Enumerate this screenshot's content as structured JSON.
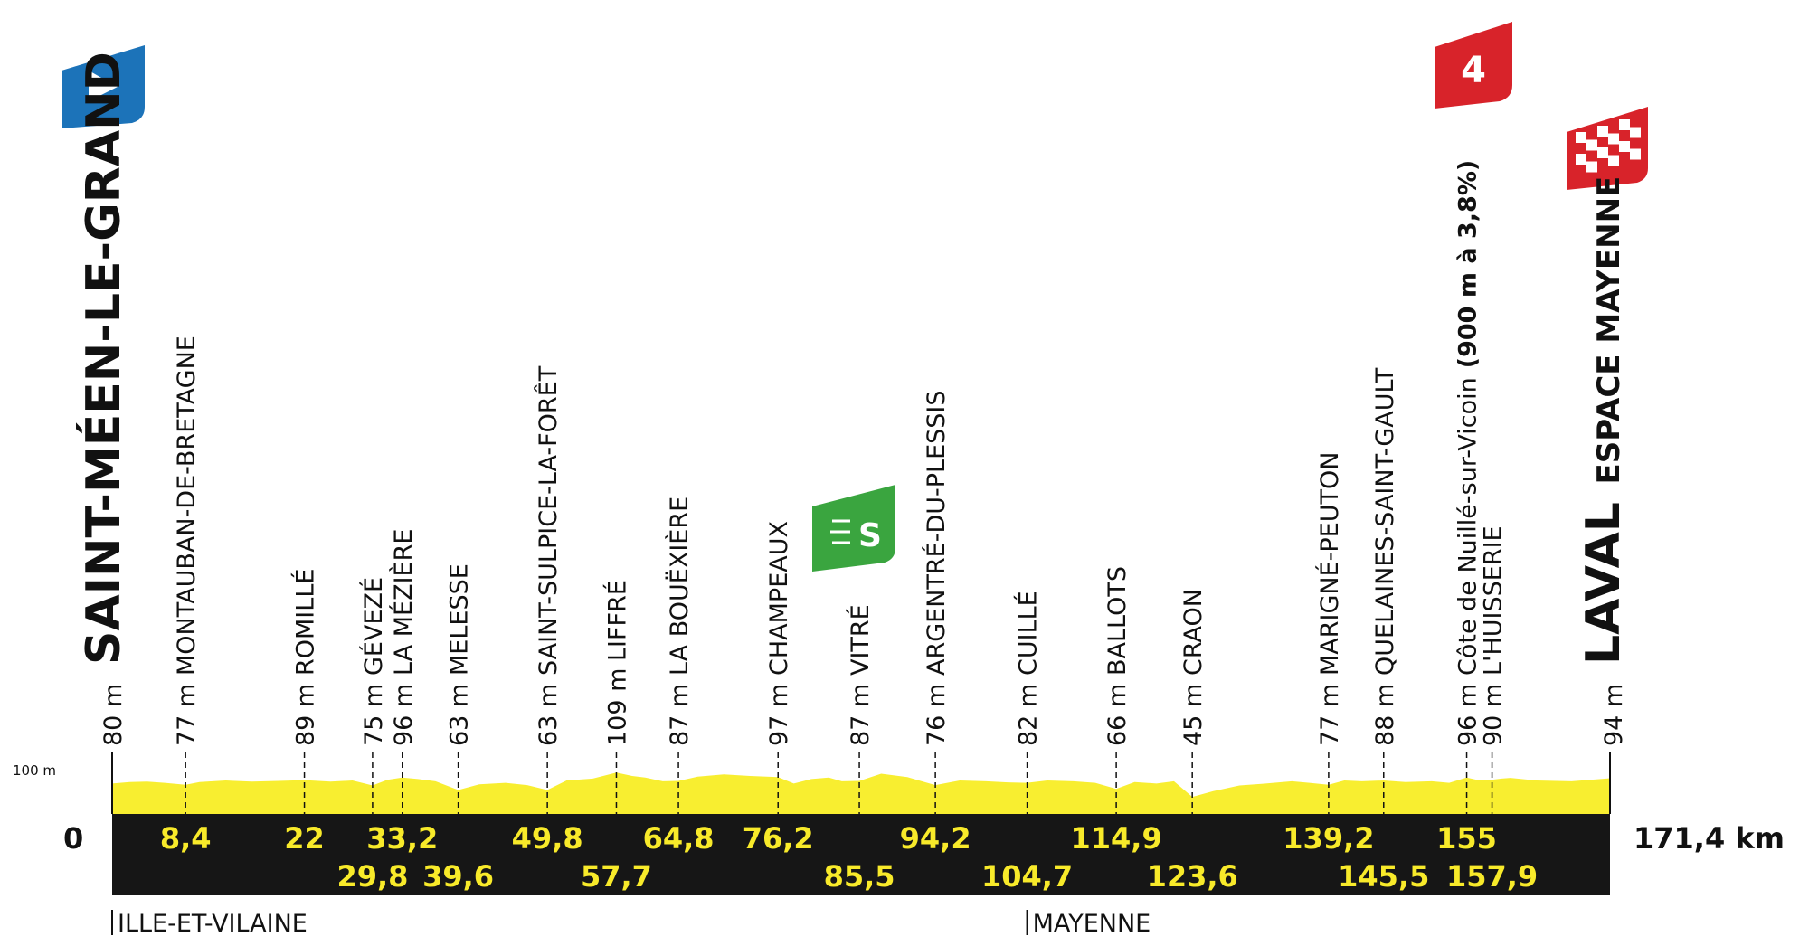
{
  "colors": {
    "profile_fill": "#f8ee30",
    "base_band": "#161616",
    "km_text": "#f8ea2a",
    "start_flag": "#1c73b9",
    "climb_flag": "#d8232a",
    "sprint_flag": "#3aa53f",
    "finish_flag": "#d8232a"
  },
  "icons": {
    "start": "start-play-flag-icon",
    "climb": "climb-category-4-icon",
    "sprint": "intermediate-sprint-icon",
    "finish": "checkered-finish-flag-icon"
  },
  "climb_flag_label": "4",
  "sprint_flag_label": "S",
  "start_label": "0",
  "total_distance": "171,4 km",
  "alt_scale_label": "100 m",
  "start_town": {
    "elev": "80 m",
    "name": "SAINT-MÉEN-LE-GRAND"
  },
  "finish_town": {
    "elev": "94 m",
    "name": "LAVAL",
    "venue": "ESPACE MAYENNE"
  },
  "regions": [
    {
      "km": 0,
      "name": "ILLE-ET-VILAINE"
    },
    {
      "km": 104.7,
      "name": "MAYENNE"
    }
  ],
  "chart_data": {
    "type": "area",
    "xlim": [
      0,
      171.4
    ],
    "points": [
      {
        "km": 8.4,
        "km_label": "8,4",
        "row": 1,
        "elev": "77 m",
        "name": "MONTAUBAN-DE-BRETAGNE"
      },
      {
        "km": 22,
        "km_label": "22",
        "row": 1,
        "elev": "89 m",
        "name": "ROMILLÉ"
      },
      {
        "km": 29.8,
        "km_label": "29,8",
        "row": 2,
        "elev": "75 m",
        "name": "GÉVEZÉ"
      },
      {
        "km": 33.2,
        "km_label": "33,2",
        "row": 1,
        "elev": "96 m",
        "name": "LA MÉZIÈRE"
      },
      {
        "km": 39.6,
        "km_label": "39,6",
        "row": 2,
        "elev": "63 m",
        "name": "MELESSE"
      },
      {
        "km": 49.8,
        "km_label": "49,8",
        "row": 1,
        "elev": "63 m",
        "name": "SAINT-SULPICE-LA-FORÊT"
      },
      {
        "km": 57.7,
        "km_label": "57,7",
        "row": 2,
        "elev": "109 m",
        "name": "LIFFRÉ"
      },
      {
        "km": 64.8,
        "km_label": "64,8",
        "row": 1,
        "elev": "87 m",
        "name": "LA BOUËXIÈRE"
      },
      {
        "km": 76.2,
        "km_label": "76,2",
        "row": 1,
        "elev": "97 m",
        "name": "CHAMPEAUX"
      },
      {
        "km": 85.5,
        "km_label": "85,5",
        "row": 2,
        "elev": "87 m",
        "name": "VITRÉ"
      },
      {
        "km": 94.2,
        "km_label": "94,2",
        "row": 1,
        "elev": "76 m",
        "name": "ARGENTRÉ-DU-PLESSIS"
      },
      {
        "km": 104.7,
        "km_label": "104,7",
        "row": 2,
        "elev": "82 m",
        "name": "CUILLÉ"
      },
      {
        "km": 114.9,
        "km_label": "114,9",
        "row": 1,
        "elev": "66 m",
        "name": "BALLOTS"
      },
      {
        "km": 123.6,
        "km_label": "123,6",
        "row": 2,
        "elev": "45 m",
        "name": "CRAON"
      },
      {
        "km": 139.2,
        "km_label": "139,2",
        "row": 1,
        "elev": "77 m",
        "name": "MARIGNÉ-PEUTON"
      },
      {
        "km": 145.5,
        "km_label": "145,5",
        "row": 2,
        "elev": "88 m",
        "name": "QUELAINES-SAINT-GAULT"
      },
      {
        "km": 155,
        "km_label": "155",
        "row": 1,
        "elev": "96 m",
        "name": "Côte de Nuillé-sur-Vicoin",
        "extra": "(900 m à 3,8%)"
      },
      {
        "km": 157.9,
        "km_label": "157,9",
        "row": 2,
        "elev": "90 m",
        "name": "L'HUISSERIE"
      }
    ],
    "sprint_km": 85.5,
    "climb_km": 155,
    "profile_elev": [
      [
        0,
        80
      ],
      [
        2,
        84
      ],
      [
        4,
        85
      ],
      [
        6,
        82
      ],
      [
        8.4,
        77
      ],
      [
        10,
        84
      ],
      [
        13,
        88
      ],
      [
        16,
        85
      ],
      [
        19,
        87
      ],
      [
        22,
        89
      ],
      [
        25,
        85
      ],
      [
        27.5,
        88
      ],
      [
        29.8,
        75
      ],
      [
        31.5,
        90
      ],
      [
        33.2,
        96
      ],
      [
        35,
        92
      ],
      [
        37,
        86
      ],
      [
        39.6,
        63
      ],
      [
        42,
        78
      ],
      [
        45,
        82
      ],
      [
        47.5,
        76
      ],
      [
        49.8,
        63
      ],
      [
        52,
        88
      ],
      [
        55,
        93
      ],
      [
        57.7,
        109
      ],
      [
        59.5,
        100
      ],
      [
        61,
        96
      ],
      [
        63,
        86
      ],
      [
        64.8,
        87
      ],
      [
        67,
        98
      ],
      [
        70,
        104
      ],
      [
        73,
        100
      ],
      [
        76.2,
        97
      ],
      [
        78,
        80
      ],
      [
        80,
        92
      ],
      [
        82,
        96
      ],
      [
        83.5,
        86
      ],
      [
        85.5,
        87
      ],
      [
        88,
        106
      ],
      [
        91,
        97
      ],
      [
        94.2,
        76
      ],
      [
        97,
        88
      ],
      [
        100,
        86
      ],
      [
        102.5,
        83
      ],
      [
        104.7,
        82
      ],
      [
        107,
        88
      ],
      [
        110,
        86
      ],
      [
        112.5,
        82
      ],
      [
        114.9,
        66
      ],
      [
        117,
        84
      ],
      [
        119.5,
        80
      ],
      [
        121.5,
        86
      ],
      [
        123.6,
        45
      ],
      [
        126,
        60
      ],
      [
        129,
        75
      ],
      [
        132,
        80
      ],
      [
        135,
        86
      ],
      [
        137,
        82
      ],
      [
        139.2,
        77
      ],
      [
        141,
        88
      ],
      [
        143,
        86
      ],
      [
        145.5,
        88
      ],
      [
        148,
        84
      ],
      [
        151,
        86
      ],
      [
        153,
        82
      ],
      [
        155,
        96
      ],
      [
        156.5,
        88
      ],
      [
        157.9,
        90
      ],
      [
        159,
        93
      ],
      [
        160,
        95
      ],
      [
        163,
        88
      ],
      [
        167,
        86
      ],
      [
        171.4,
        94
      ]
    ]
  }
}
